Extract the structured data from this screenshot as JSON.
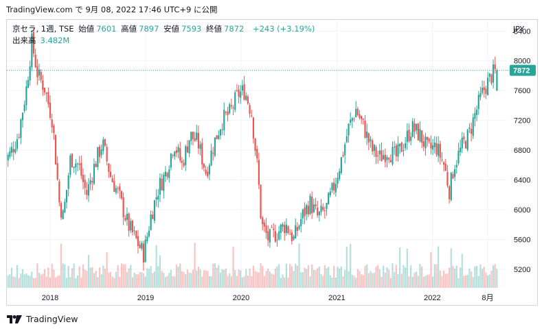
{
  "header": {
    "text": "TradingView.com で 9月 08, 2022 17:46 UTC+9 に公開"
  },
  "legend": {
    "symbol": "京セラ, 1週, TSE",
    "open_label": "始値",
    "open": "7601",
    "high_label": "高値",
    "high": "7897",
    "low_label": "安値",
    "low": "7593",
    "close_label": "終値",
    "close": "7872",
    "change": "+243 (+3.19%)",
    "volume_label": "出来高",
    "volume": "3.482M"
  },
  "currency": "JPY",
  "footer": {
    "brand": "TradingView"
  },
  "colors": {
    "up": "#26a69a",
    "down": "#ef5350",
    "price_badge": "#26a69a",
    "grid": "#f0f3fa",
    "axis_text": "#131722"
  },
  "chart_data": {
    "type": "candlestick",
    "interval": "1W",
    "y_ticks": [
      "8400",
      "8000",
      "7600",
      "7200",
      "6800",
      "6400",
      "6000",
      "5600",
      "5200"
    ],
    "x_ticks": [
      "2018",
      "2019",
      "2020",
      "2021",
      "2022",
      "8月"
    ],
    "ylim": [
      4950,
      8550
    ],
    "current_price": "7872",
    "series": [
      {
        "name": "price",
        "anchors": [
          [
            "2017-07-10",
            6650
          ],
          [
            "2017-08-01",
            6750
          ],
          [
            "2017-09-01",
            7000
          ],
          [
            "2017-10-01",
            7600
          ],
          [
            "2017-10-23",
            8250
          ],
          [
            "2017-11-15",
            7800
          ],
          [
            "2017-12-10",
            7650
          ],
          [
            "2018-01-10",
            7200
          ],
          [
            "2018-02-05",
            6100
          ],
          [
            "2018-02-20",
            5900
          ],
          [
            "2018-03-20",
            6700
          ],
          [
            "2018-04-20",
            6600
          ],
          [
            "2018-05-20",
            6200
          ],
          [
            "2018-06-20",
            6600
          ],
          [
            "2018-07-20",
            6900
          ],
          [
            "2018-08-20",
            6450
          ],
          [
            "2018-09-20",
            6200
          ],
          [
            "2018-10-25",
            5800
          ],
          [
            "2018-12-25",
            5400
          ],
          [
            "2019-01-20",
            5900
          ],
          [
            "2019-02-20",
            6300
          ],
          [
            "2019-03-20",
            6500
          ],
          [
            "2019-04-20",
            6900
          ],
          [
            "2019-05-20",
            6600
          ],
          [
            "2019-06-20",
            7000
          ],
          [
            "2019-07-20",
            6900
          ],
          [
            "2019-08-20",
            6500
          ],
          [
            "2019-09-20",
            6900
          ],
          [
            "2019-10-20",
            7200
          ],
          [
            "2019-11-20",
            7300
          ],
          [
            "2019-12-20",
            7550
          ],
          [
            "2020-01-15",
            7600
          ],
          [
            "2020-02-10",
            7300
          ],
          [
            "2020-03-05",
            6500
          ],
          [
            "2020-03-19",
            5800
          ],
          [
            "2020-04-15",
            5600
          ],
          [
            "2020-05-20",
            5700
          ],
          [
            "2020-06-20",
            5800
          ],
          [
            "2020-07-20",
            5600
          ],
          [
            "2020-08-20",
            5900
          ],
          [
            "2020-09-20",
            6100
          ],
          [
            "2020-10-20",
            5900
          ],
          [
            "2020-11-20",
            6000
          ],
          [
            "2020-12-20",
            6300
          ],
          [
            "2021-01-20",
            6700
          ],
          [
            "2021-02-15",
            7100
          ],
          [
            "2021-03-15",
            7350
          ],
          [
            "2021-04-15",
            7100
          ],
          [
            "2021-05-15",
            6800
          ],
          [
            "2021-06-15",
            6700
          ],
          [
            "2021-07-15",
            6800
          ],
          [
            "2021-08-15",
            6700
          ],
          [
            "2021-09-15",
            6900
          ],
          [
            "2021-10-15",
            7100
          ],
          [
            "2021-11-15",
            7000
          ],
          [
            "2021-12-15",
            6800
          ],
          [
            "2022-01-15",
            6850
          ],
          [
            "2022-02-15",
            6600
          ],
          [
            "2022-03-08",
            6250
          ],
          [
            "2022-03-25",
            6600
          ],
          [
            "2022-04-25",
            6850
          ],
          [
            "2022-05-20",
            7000
          ],
          [
            "2022-06-15",
            7300
          ],
          [
            "2022-07-15",
            7600
          ],
          [
            "2022-08-15",
            7800
          ],
          [
            "2022-09-05",
            7872
          ]
        ]
      }
    ]
  }
}
